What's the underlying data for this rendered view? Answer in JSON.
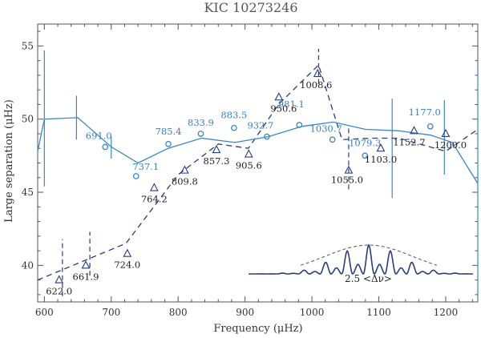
{
  "chart_data": {
    "type": "scatter",
    "title": "KIC 10273246",
    "xlabel": "Frequency (μHz)",
    "ylabel": "Large separation (μHz)",
    "xlim": [
      590,
      1248
    ],
    "ylim": [
      37.5,
      56.5
    ],
    "xticks": [
      600,
      700,
      800,
      900,
      1000,
      1100,
      1200
    ],
    "yticks": [
      40,
      45,
      50,
      55
    ],
    "colors": {
      "l0": "#2a3c80",
      "l1": "#3a86c8",
      "axis": "#555555"
    },
    "series": [
      {
        "name": "triangles (dashed)",
        "marker": "triangle",
        "points": [
          {
            "x": 622.0,
            "y": 39.0,
            "label": "622.0"
          },
          {
            "x": 661.9,
            "y": 40.0,
            "label": "661.9"
          },
          {
            "x": 724.0,
            "y": 40.8,
            "label": "724.0"
          },
          {
            "x": 764.2,
            "y": 45.3,
            "label": "764.2"
          },
          {
            "x": 809.8,
            "y": 46.5,
            "label": "809.8"
          },
          {
            "x": 857.3,
            "y": 47.9,
            "label": "857.3"
          },
          {
            "x": 905.6,
            "y": 47.6,
            "label": "905.6"
          },
          {
            "x": 950.6,
            "y": 51.5,
            "label": "950.6"
          },
          {
            "x": 1008.6,
            "y": 53.1,
            "label": "1008.6"
          },
          {
            "x": 1055.0,
            "y": 46.5,
            "label": "1055.0"
          },
          {
            "x": 1103.0,
            "y": 48.0,
            "label": "1103.0"
          },
          {
            "x": 1152.7,
            "y": 49.2,
            "label": "1152.7"
          },
          {
            "x": 1200.0,
            "y": 49.0,
            "label": "1200.0"
          }
        ],
        "fit_x": [
          590,
          722,
          800,
          860,
          905,
          950,
          1010,
          1045,
          1090,
          1130,
          1200,
          1248
        ],
        "fit_y": [
          39.0,
          41.5,
          46.2,
          48.3,
          48.0,
          51.0,
          53.7,
          48.6,
          48.7,
          48.7,
          47.8,
          49.3
        ]
      },
      {
        "name": "circles (solid)",
        "marker": "circle",
        "points": [
          {
            "x": 691.0,
            "y": 48.1,
            "label": "691.0"
          },
          {
            "x": 737.1,
            "y": 46.1,
            "label": "737.1"
          },
          {
            "x": 785.4,
            "y": 48.3,
            "label": "785.4"
          },
          {
            "x": 833.9,
            "y": 49.0,
            "label": "833.9"
          },
          {
            "x": 883.5,
            "y": 49.4,
            "label": "883.5"
          },
          {
            "x": 932.7,
            "y": 48.8,
            "label": "932.7"
          },
          {
            "x": 981.1,
            "y": 49.6,
            "label": "981.1"
          },
          {
            "x": 1030.7,
            "y": 48.6,
            "label": "1030.7"
          },
          {
            "x": 1079.3,
            "y": 47.5,
            "label": "1079.3"
          },
          {
            "x": 1177.0,
            "y": 49.5,
            "label": "1177.0"
          }
        ],
        "fit_x": [
          590,
          600,
          650,
          700,
          740,
          785,
          835,
          885,
          935,
          985,
          1032,
          1080,
          1130,
          1178,
          1210,
          1248
        ],
        "fit_y": [
          47.8,
          50.0,
          50.1,
          48.1,
          47.0,
          48.0,
          48.7,
          48.4,
          48.8,
          49.5,
          49.8,
          49.3,
          49.2,
          48.9,
          48.4,
          45.6
        ]
      }
    ],
    "error_bars_solid": [
      {
        "x": 600,
        "ylo": 45.4,
        "yhi": 54.7
      },
      {
        "x": 648,
        "ylo": 48.6,
        "yhi": 51.6
      },
      {
        "x": 700,
        "ylo": 47.3,
        "yhi": 48.8
      },
      {
        "x": 1120,
        "ylo": 44.6,
        "yhi": 51.4
      },
      {
        "x": 1198,
        "ylo": 46.2,
        "yhi": 51.3
      },
      {
        "x": 1248,
        "ylo": 37.8,
        "yhi": 53.6
      }
    ],
    "error_bars_dashed": [
      {
        "x": 627,
        "ylo": 37.9,
        "yhi": 41.8
      },
      {
        "x": 668,
        "ylo": 39.3,
        "yhi": 42.3
      },
      {
        "x": 1010,
        "ylo": 52.4,
        "yhi": 54.8
      },
      {
        "x": 1055,
        "ylo": 45.2,
        "yhi": 49.4
      }
    ],
    "inset": {
      "label": "2.5 <Δν>"
    }
  }
}
